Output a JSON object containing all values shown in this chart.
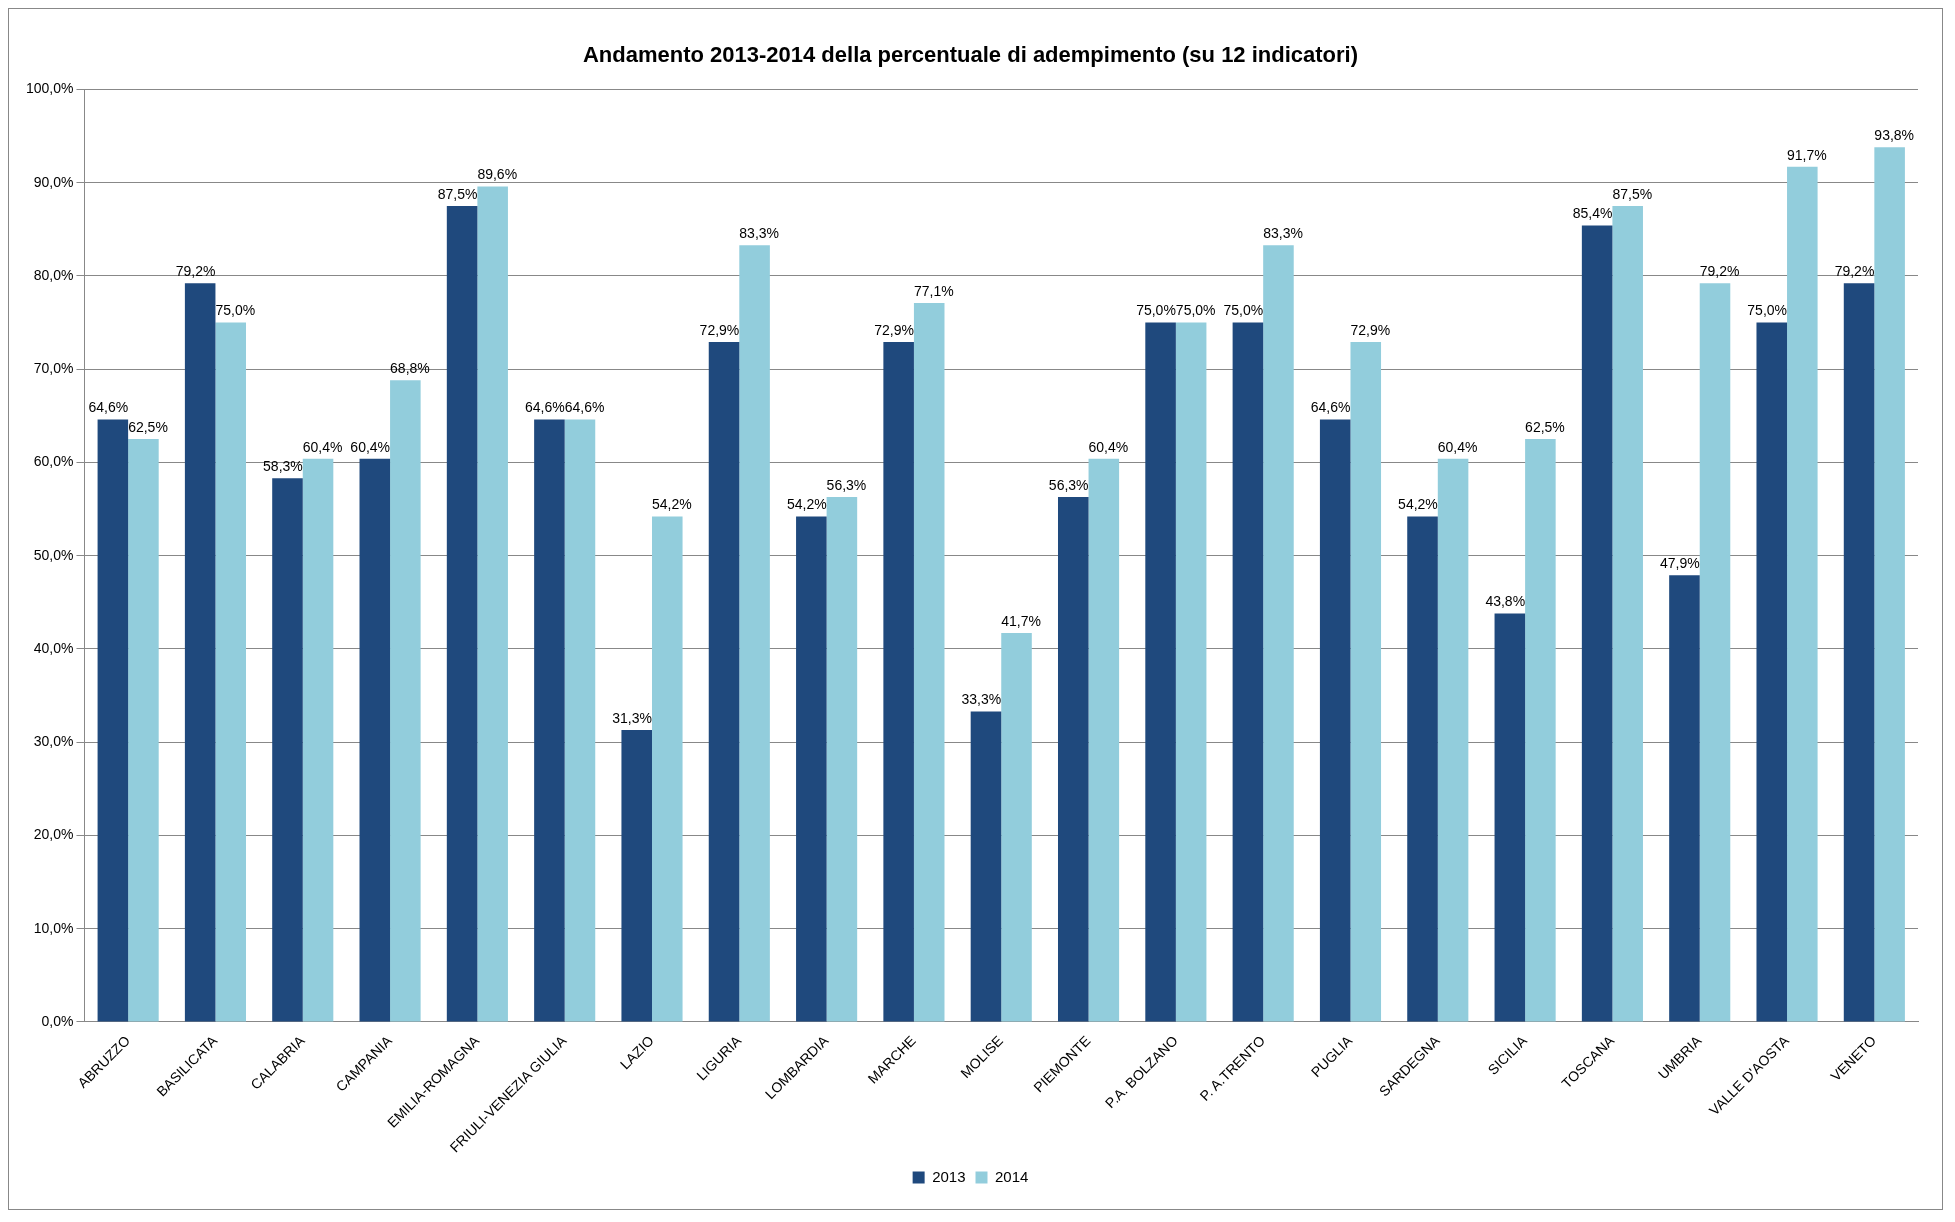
{
  "chart_data": {
    "type": "bar",
    "title": "Andamento 2013-2014 della percentuale di adempimento (su 12 indicatori)",
    "categories": [
      "ABRUZZO",
      "BASILICATA",
      "CALABRIA",
      "CAMPANIA",
      "EMILIA-ROMAGNA",
      "FRIULI-VENEZIA GIULIA",
      "LAZIO",
      "LIGURIA",
      "LOMBARDIA",
      "MARCHE",
      "MOLISE",
      "PIEMONTE",
      "P.A. BOLZANO",
      "P. A.TRENTO",
      "PUGLIA",
      "SARDEGNA",
      "SICILIA",
      "TOSCANA",
      "UMBRIA",
      "VALLE D'AOSTA",
      "VENETO"
    ],
    "series": [
      {
        "name": "2013",
        "color": "#1f497d",
        "values": [
          64.6,
          79.2,
          58.3,
          60.4,
          87.5,
          64.6,
          31.3,
          72.9,
          54.2,
          72.9,
          33.3,
          56.3,
          75.0,
          75.0,
          64.6,
          54.2,
          43.8,
          85.4,
          47.9,
          75.0,
          79.2
        ],
        "value_labels": [
          "64,6%",
          "79,2%",
          "58,3%",
          "60,4%",
          "87,5%",
          "64,6%",
          "31,3%",
          "72,9%",
          "54,2%",
          "72,9%",
          "33,3%",
          "56,3%",
          "75,0%",
          "75,0%",
          "64,6%",
          "54,2%",
          "43,8%",
          "85,4%",
          "47,9%",
          "75,0%",
          "79,2%"
        ]
      },
      {
        "name": "2014",
        "color": "#92cddc",
        "values": [
          62.5,
          75.0,
          60.4,
          68.8,
          89.6,
          64.6,
          54.2,
          83.3,
          56.3,
          77.1,
          41.7,
          60.4,
          75.0,
          83.3,
          72.9,
          60.4,
          62.5,
          87.5,
          79.2,
          91.7,
          93.8
        ],
        "value_labels": [
          "62,5%",
          "75,0%",
          "60,4%",
          "68,8%",
          "89,6%",
          "64,6%",
          "54,2%",
          "83,3%",
          "56,3%",
          "77,1%",
          "41,7%",
          "60,4%",
          "75,0%",
          "83,3%",
          "72,9%",
          "60,4%",
          "62,5%",
          "87,5%",
          "79,2%",
          "91,7%",
          "93,8%"
        ]
      }
    ],
    "ylim": [
      0,
      100
    ],
    "yticks": [
      {
        "value": 0,
        "label": "0,0%"
      },
      {
        "value": 10,
        "label": "10,0%"
      },
      {
        "value": 20,
        "label": "20,0%"
      },
      {
        "value": 30,
        "label": "30,0%"
      },
      {
        "value": 40,
        "label": "40,0%"
      },
      {
        "value": 50,
        "label": "50,0%"
      },
      {
        "value": 60,
        "label": "60,0%"
      },
      {
        "value": 70,
        "label": "70,0%"
      },
      {
        "value": 80,
        "label": "80,0%"
      },
      {
        "value": 90,
        "label": "90,0%"
      },
      {
        "value": 100,
        "label": "100,0%"
      }
    ],
    "grid": "y",
    "legend": "bottom"
  }
}
